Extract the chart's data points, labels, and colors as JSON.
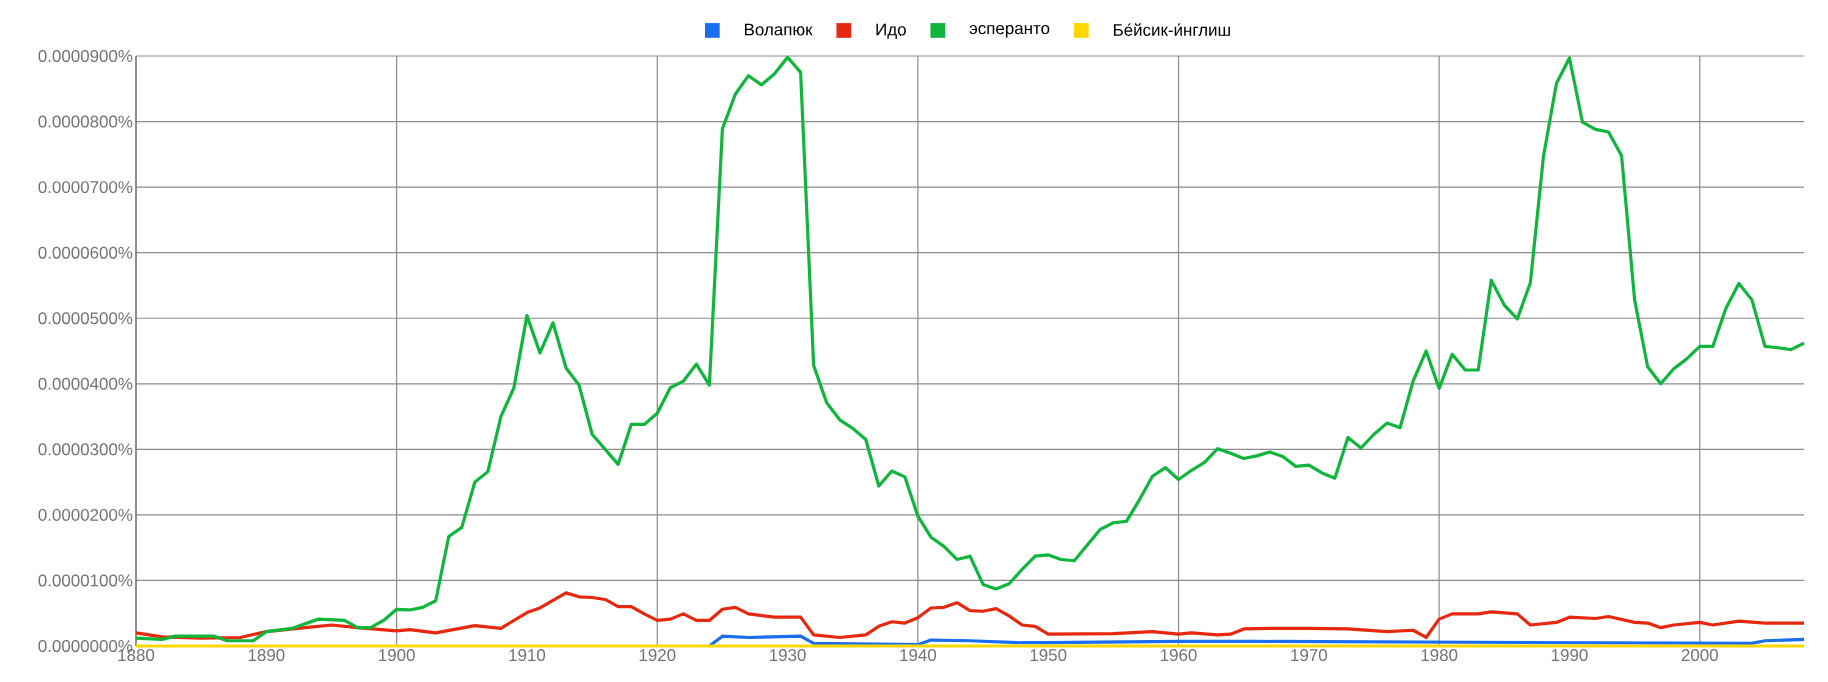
{
  "chart_data": {
    "type": "line",
    "xlim": [
      1880,
      2008
    ],
    "ylim": [
      0,
      9e-05
    ],
    "xticks": [
      1880,
      1890,
      1900,
      1910,
      1920,
      1930,
      1940,
      1950,
      1960,
      1970,
      1980,
      1990,
      2000
    ],
    "yticks": [
      {
        "value": 0,
        "label": "0.0000000%"
      },
      {
        "value": 1e-05,
        "label": "0.0000100%"
      },
      {
        "value": 2e-05,
        "label": "0.0000200%"
      },
      {
        "value": 3e-05,
        "label": "0.0000300%"
      },
      {
        "value": 4e-05,
        "label": "0.0000400%"
      },
      {
        "value": 5e-05,
        "label": "0.0000500%"
      },
      {
        "value": 6e-05,
        "label": "0.0000600%"
      },
      {
        "value": 7e-05,
        "label": "0.0000700%"
      },
      {
        "value": 8e-05,
        "label": "0.0000800%"
      },
      {
        "value": 9e-05,
        "label": "0.0000900%"
      }
    ],
    "grid": true,
    "legend": "top",
    "marker": "none",
    "line_style": "solid",
    "series": [
      {
        "name": "Волапюк",
        "color": "#1a6ef0",
        "x": [
          1924,
          1925,
          1927,
          1931,
          1932,
          1940,
          1941,
          1944,
          1948,
          1950,
          1960,
          1966,
          2004,
          2005,
          2008
        ],
        "values": [
          0,
          1.5e-06,
          1.3e-06,
          1.5e-06,
          4e-07,
          2e-07,
          9e-07,
          8e-07,
          5e-07,
          5e-07,
          7e-07,
          7e-07,
          4e-07,
          8e-07,
          1e-06
        ]
      },
      {
        "name": "Идо",
        "color": "#e5280e",
        "x": [
          1880,
          1882,
          1885,
          1888,
          1890,
          1893,
          1895,
          1897,
          1900,
          1901,
          1903,
          1906,
          1908,
          1910,
          1911,
          1913,
          1914,
          1915,
          1916,
          1917,
          1918,
          1919,
          1920,
          1921,
          1922,
          1923,
          1924,
          1925,
          1926,
          1927,
          1929,
          1931,
          1932,
          1934,
          1936,
          1937,
          1938,
          1939,
          1940,
          1941,
          1942,
          1943,
          1944,
          1945,
          1946,
          1947,
          1948,
          1949,
          1950,
          1955,
          1958,
          1960,
          1961,
          1963,
          1964,
          1965,
          1967,
          1970,
          1973,
          1976,
          1978,
          1979,
          1980,
          1981,
          1983,
          1984,
          1986,
          1987,
          1989,
          1990,
          1992,
          1993,
          1995,
          1996,
          1997,
          1998,
          2000,
          2001,
          2003,
          2005,
          2008
        ],
        "values": [
          2e-06,
          1.4e-06,
          1.2e-06,
          1.3e-06,
          2.2e-06,
          2.8e-06,
          3.2e-06,
          2.8e-06,
          2.3e-06,
          2.5e-06,
          2e-06,
          3.1e-06,
          2.7e-06,
          5.1e-06,
          5.8e-06,
          8.1e-06,
          7.5e-06,
          7.4e-06,
          7.1e-06,
          6e-06,
          6e-06,
          4.9e-06,
          3.9e-06,
          4.1e-06,
          4.9e-06,
          3.9e-06,
          3.9e-06,
          5.6e-06,
          5.9e-06,
          4.9e-06,
          4.4e-06,
          4.4e-06,
          1.7e-06,
          1.3e-06,
          1.7e-06,
          3e-06,
          3.7e-06,
          3.5e-06,
          4.3e-06,
          5.8e-06,
          5.9e-06,
          6.6e-06,
          5.4e-06,
          5.3e-06,
          5.7e-06,
          4.6e-06,
          3.2e-06,
          3e-06,
          1.8e-06,
          1.9e-06,
          2.2e-06,
          1.8e-06,
          2e-06,
          1.7e-06,
          1.8e-06,
          2.6e-06,
          2.7e-06,
          2.7e-06,
          2.6e-06,
          2.2e-06,
          2.4e-06,
          1.3e-06,
          4.1e-06,
          4.9e-06,
          4.9e-06,
          5.2e-06,
          4.9e-06,
          3.2e-06,
          3.6e-06,
          4.4e-06,
          4.2e-06,
          4.5e-06,
          3.6e-06,
          3.5e-06,
          2.8e-06,
          3.2e-06,
          3.6e-06,
          3.2e-06,
          3.8e-06,
          3.5e-06,
          3.5e-06
        ]
      },
      {
        "name": "эсперанто",
        "color": "#10b63c",
        "x": [
          1880,
          1882,
          1883,
          1886,
          1887,
          1889,
          1890,
          1892,
          1894,
          1896,
          1897,
          1898,
          1899,
          1900,
          1901,
          1902,
          1903,
          1904,
          1905,
          1906,
          1907,
          1908,
          1909,
          1910,
          1911,
          1912,
          1913,
          1914,
          1915,
          1917,
          1918,
          1919,
          1920,
          1921,
          1922,
          1923,
          1924,
          1925,
          1926,
          1927,
          1928,
          1929,
          1930,
          1931,
          1932,
          1933,
          1934,
          1935,
          1936,
          1937,
          1938,
          1939,
          1940,
          1941,
          1942,
          1943,
          1944,
          1945,
          1946,
          1947,
          1948,
          1949,
          1950,
          1951,
          1952,
          1953,
          1954,
          1955,
          1956,
          1957,
          1958,
          1959,
          1960,
          1961,
          1962,
          1963,
          1964,
          1965,
          1966,
          1967,
          1968,
          1969,
          1970,
          1971,
          1972,
          1973,
          1974,
          1975,
          1976,
          1977,
          1978,
          1979,
          1980,
          1981,
          1982,
          1983,
          1984,
          1985,
          1986,
          1987,
          1988,
          1989,
          1990,
          1991,
          1992,
          1993,
          1994,
          1995,
          1996,
          1997,
          1998,
          1999,
          2000,
          2001,
          2002,
          2003,
          2004,
          2005,
          2006,
          2007,
          2008
        ],
        "values": [
          1.2e-06,
          1e-06,
          1.5e-06,
          1.5e-06,
          8e-07,
          8e-07,
          2.2e-06,
          2.7e-06,
          4.1e-06,
          3.9e-06,
          2.8e-06,
          2.8e-06,
          3.9e-06,
          5.6e-06,
          5.5e-06,
          5.9e-06,
          6.9e-06,
          1.67e-05,
          1.81e-05,
          2.5e-05,
          2.66e-05,
          3.5e-05,
          3.94e-05,
          5.04e-05,
          4.47e-05,
          4.93e-05,
          4.24e-05,
          3.98e-05,
          3.23e-05,
          2.77e-05,
          3.38e-05,
          3.38e-05,
          3.55e-05,
          3.94e-05,
          4.04e-05,
          4.3e-05,
          3.98e-05,
          7.89e-05,
          8.42e-05,
          8.7e-05,
          8.56e-05,
          8.73e-05,
          8.98e-05,
          8.75e-05,
          4.28e-05,
          3.71e-05,
          3.45e-05,
          3.32e-05,
          3.15e-05,
          2.44e-05,
          2.67e-05,
          2.58e-05,
          1.98e-05,
          1.66e-05,
          1.52e-05,
          1.32e-05,
          1.37e-05,
          9.4e-06,
          8.7e-06,
          9.5e-06,
          1.17e-05,
          1.37e-05,
          1.39e-05,
          1.32e-05,
          1.3e-05,
          1.54e-05,
          1.78e-05,
          1.88e-05,
          1.9e-05,
          2.23e-05,
          2.59e-05,
          2.72e-05,
          2.54e-05,
          2.68e-05,
          2.8e-05,
          3.01e-05,
          2.94e-05,
          2.86e-05,
          2.9e-05,
          2.96e-05,
          2.89e-05,
          2.74e-05,
          2.76e-05,
          2.64e-05,
          2.56e-05,
          3.18e-05,
          3.02e-05,
          3.23e-05,
          3.4e-05,
          3.33e-05,
          4.04e-05,
          4.5e-05,
          3.93e-05,
          4.45e-05,
          4.21e-05,
          4.21e-05,
          5.58e-05,
          5.2e-05,
          4.99e-05,
          5.54e-05,
          7.46e-05,
          8.58e-05,
          8.97e-05,
          7.99e-05,
          7.88e-05,
          7.84e-05,
          7.48e-05,
          5.28e-05,
          4.26e-05,
          4e-05,
          4.23e-05,
          4.38e-05,
          4.57e-05,
          4.57e-05,
          5.15e-05,
          5.53e-05,
          5.28e-05,
          4.57e-05,
          4.55e-05,
          4.52e-05,
          4.62e-05
        ]
      },
      {
        "name": "Бе́йсик-и́нглиш",
        "color": "#ffd700",
        "x": [
          1880,
          2008
        ],
        "values": [
          0,
          0
        ]
      }
    ]
  }
}
